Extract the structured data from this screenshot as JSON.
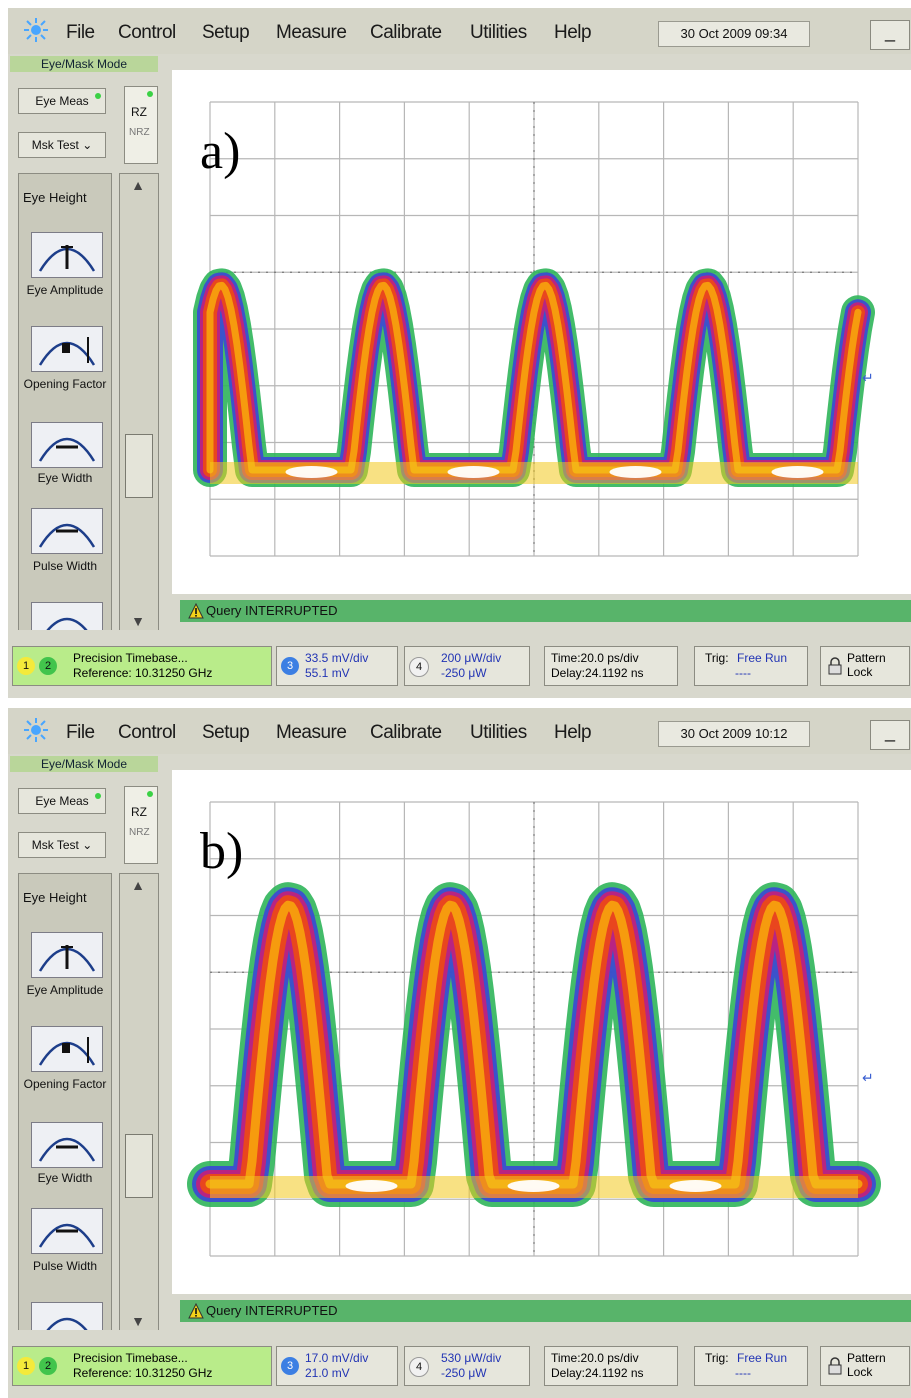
{
  "menu": {
    "items": [
      "File",
      "Control",
      "Setup",
      "Measure",
      "Calibrate",
      "Utilities",
      "Help"
    ],
    "minimize_label": "_"
  },
  "sidebar": {
    "mode_label": "Eye/Mask Mode",
    "eye_meas_label": "Eye Meas",
    "mask_test_label": "Msk Test",
    "rz_label": "RZ",
    "nrz_label": "NRZ",
    "measurements_title": "Eye Height",
    "measurements": [
      "Eye Amplitude",
      "Opening Factor",
      "Eye Width",
      "Pulse Width"
    ]
  },
  "status_message": "Query INTERRUPTED",
  "bottom": {
    "precision_label": "Precision Timebase...",
    "reference_label": "Reference: 10.31250 GHz",
    "time_label": "Time:20.0 ps/div",
    "delay_label": "Delay:24.1192 ns",
    "trig_label": "Trig:",
    "trig_value": "Free Run",
    "trig_sub": "----",
    "pattern_lock_label": "Pattern Lock",
    "channels": [
      "1",
      "2",
      "3",
      "4"
    ]
  },
  "panels": [
    {
      "letter": "a)",
      "datetime": "30 Oct 2009   09:34",
      "ch3_scale": "33.5 mV/div",
      "ch3_offset": "55.1 mV",
      "ch4_scale": "200 μW/div",
      "ch4_offset": "-250 μW"
    },
    {
      "letter": "b)",
      "datetime": "30 Oct 2009   10:12",
      "ch3_scale": "17.0 mV/div",
      "ch3_offset": "21.0 mV",
      "ch4_scale": "530 μW/div",
      "ch4_offset": "-250 μW"
    }
  ],
  "colors": {
    "status_green": "#58b46a",
    "mode_green": "#b9d69a",
    "link_blue": "#2234b4"
  },
  "icons": {
    "app": "sun-icon",
    "warning": "warning-icon",
    "measure": "eye-diagram-icon"
  }
}
